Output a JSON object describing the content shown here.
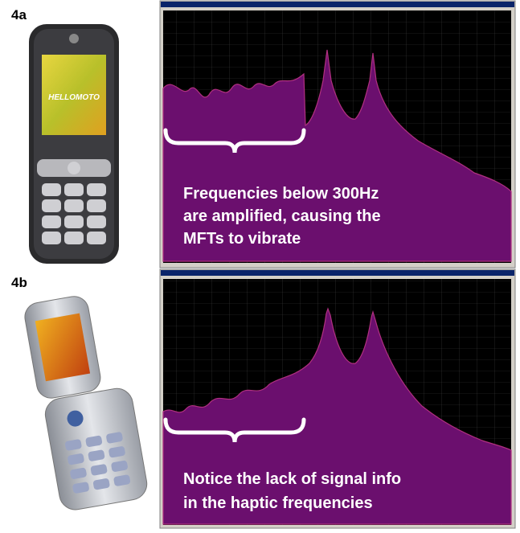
{
  "panels": [
    {
      "label": "4a",
      "caption_lines": [
        "Frequencies below 300Hz",
        "are amplified, causing the",
        "MFTs to vibrate"
      ]
    },
    {
      "label": "4b",
      "caption_lines": [
        "Notice the lack of signal info",
        "in the haptic frequencies"
      ]
    }
  ]
}
